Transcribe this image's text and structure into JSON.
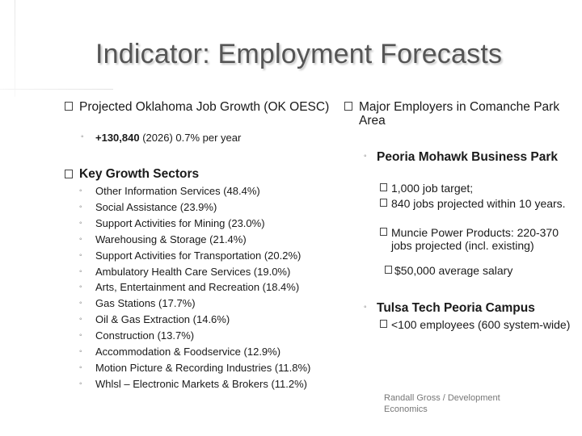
{
  "title": "Indicator: Employment Forecasts",
  "left": {
    "projected_label": "Projected Oklahoma Job Growth (OK OESC)",
    "projected_detail_bold": "+130,840",
    "projected_detail_rest": "(2026) 0.7% per year",
    "sectors_heading": "Key Growth Sectors",
    "sectors": [
      "Other Information Services (48.4%)",
      "Social Assistance (23.9%)",
      "Support Activities for Mining (23.0%)",
      "Warehousing & Storage (21.4%)",
      "Support Activities for Transportation (20.2%)",
      "Ambulatory Health Care Services (19.0%)",
      "Arts, Entertainment and Recreation (18.4%)",
      "Gas Stations (17.7%)",
      "Oil & Gas Extraction (14.6%)",
      "Construction (13.7%)",
      "Accommodation & Foodservice (12.9%)",
      "Motion Picture & Recording Industries (11.8%)",
      "Whlsl – Electronic Markets & Brokers (11.2%)"
    ]
  },
  "right": {
    "heading": "Major Employers in Comanche Park Area",
    "peoria_heading": "Peoria Mohawk Business Park",
    "peoria_items": [
      "1,000 job target;",
      "840 jobs projected within 10 years.",
      "Muncie Power Products: 220-370 jobs projected (incl. existing)"
    ],
    "peoria_salary": "$50,000 average salary",
    "tulsa_heading": "Tulsa Tech Peoria Campus",
    "tulsa_items": [
      "<100 employees (600 system-wide)"
    ]
  },
  "footer": "Randall Gross / Development Economics"
}
